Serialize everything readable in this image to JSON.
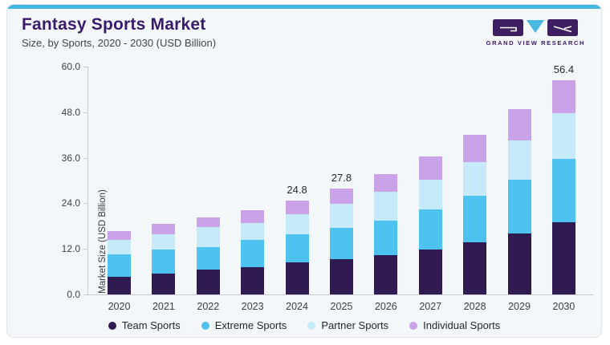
{
  "header": {
    "title": "Fantasy Sports Market",
    "subtitle": "Size, by Sports, 2020 - 2030 (USD Billion)",
    "title_color": "#3A1B6B"
  },
  "logo": {
    "text": "GRAND VIEW RESEARCH",
    "purple": "#3E1F62",
    "cyan": "#4AB9E2"
  },
  "card": {
    "accent_color": "#44B5DE",
    "background": "#F3F7FA",
    "border_color": "#DDE3E9"
  },
  "chart_data": {
    "type": "bar",
    "stacked": true,
    "title": "Fantasy Sports Market",
    "ylabel": "Market Size (USD Billion)",
    "xlabel": "",
    "ylim": [
      0,
      60
    ],
    "grid": false,
    "legend_position": "bottom",
    "axis_color": "#C7CCD3",
    "yticks": [
      {
        "value": 0,
        "label": "0.0"
      },
      {
        "value": 12,
        "label": "12.0"
      },
      {
        "value": 24,
        "label": "24.0"
      },
      {
        "value": 36,
        "label": "36.0"
      },
      {
        "value": 48,
        "label": "48.0"
      },
      {
        "value": 60,
        "label": "60.0"
      }
    ],
    "categories": [
      "2020",
      "2021",
      "2022",
      "2023",
      "2024",
      "2025",
      "2026",
      "2027",
      "2028",
      "2029",
      "2030"
    ],
    "series": [
      {
        "name": "Team Sports",
        "color": "#2F1B51",
        "values": [
          4.7,
          5.6,
          6.5,
          7.1,
          8.4,
          9.2,
          10.3,
          11.8,
          13.8,
          16.1,
          19.0
        ]
      },
      {
        "name": "Extreme Sports",
        "color": "#4FC3F0",
        "values": [
          5.8,
          6.2,
          5.9,
          7.3,
          7.5,
          8.4,
          9.1,
          10.6,
          12.2,
          14.2,
          16.7
        ]
      },
      {
        "name": "Partner Sports",
        "color": "#C7EAFA",
        "values": [
          3.9,
          4.0,
          5.4,
          4.5,
          5.3,
          6.2,
          7.7,
          7.9,
          8.8,
          10.2,
          12.0
        ]
      },
      {
        "name": "Individual Sports",
        "color": "#C9A2E7",
        "values": [
          2.2,
          2.7,
          2.4,
          3.3,
          3.6,
          4.0,
          4.7,
          6.0,
          7.3,
          8.4,
          8.7
        ]
      }
    ],
    "totals": [
      16.6,
      18.5,
      20.2,
      22.2,
      24.8,
      27.8,
      31.8,
      36.3,
      42.1,
      48.9,
      56.4
    ],
    "bar_value_labels": [
      "",
      "",
      "",
      "",
      "24.8",
      "27.8",
      "",
      "",
      "",
      "",
      "56.4"
    ]
  }
}
